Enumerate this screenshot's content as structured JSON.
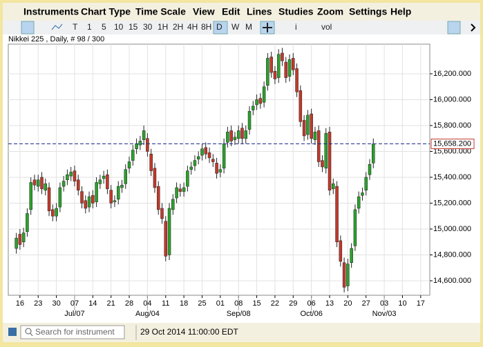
{
  "menu": [
    "Instruments",
    "Chart Type",
    "Time Scale",
    "View",
    "Edit",
    "Lines",
    "Studies",
    "Zoom",
    "Settings",
    "Help"
  ],
  "toolbar": [
    "T",
    "1",
    "5",
    "10",
    "15",
    "30",
    "1H",
    "2H",
    "4H",
    "8H",
    "D",
    "W",
    "M",
    "i",
    "vol"
  ],
  "status": {
    "search_placeholder": "Search for instrument",
    "datetime": "29 Oct 2014 11:00:00 EDT"
  },
  "chart_data": {
    "type": "candlestick",
    "title": "Nikkei 225 , Daily, # 98 / 300",
    "up_color": "#2ca02c",
    "down_color": "#c0392b",
    "grid": true,
    "open": [
      14850,
      14960,
      14900,
      14980,
      15150,
      15380,
      15330,
      15400,
      15300,
      15320,
      15150,
      15100,
      15170,
      15330,
      15380,
      15410,
      15450,
      15380,
      15290,
      15220,
      15170,
      15260,
      15210,
      15350,
      15390,
      15420,
      15300,
      15210,
      15230,
      15320,
      15350,
      15470,
      15530,
      15620,
      15650,
      15690,
      15700,
      15580,
      15470,
      15330,
      15160,
      15060,
      14800,
      15150,
      15240,
      15310,
      15290,
      15330,
      15460,
      15490,
      15540,
      15570,
      15630,
      15590,
      15540,
      15510,
      15440,
      15470,
      15670,
      15760,
      15690,
      15700,
      15780,
      15700,
      15770,
      15920,
      15960,
      16010,
      15980,
      16110,
      16330,
      16220,
      16170,
      16360,
      16290,
      16180,
      16320,
      16240,
      16070,
      15840,
      15730,
      15890,
      15690,
      15760,
      15530,
      15470,
      15750,
      15310,
      15330,
      14910,
      14740,
      14560,
      14740,
      14870,
      15160,
      15260,
      15300,
      15420,
      15510
    ],
    "high": [
      14970,
      15000,
      15010,
      15160,
      15400,
      15420,
      15420,
      15440,
      15390,
      15360,
      15190,
      15200,
      15360,
      15410,
      15460,
      15480,
      15490,
      15420,
      15330,
      15260,
      15290,
      15300,
      15400,
      15420,
      15450,
      15460,
      15340,
      15260,
      15370,
      15380,
      15500,
      15560,
      15650,
      15700,
      15720,
      15800,
      15740,
      15620,
      15510,
      15370,
      15200,
      15100,
      15200,
      15270,
      15360,
      15350,
      15360,
      15490,
      15520,
      15570,
      15600,
      15660,
      15670,
      15630,
      15580,
      15550,
      15500,
      15700,
      15790,
      15800,
      15750,
      15800,
      15820,
      15800,
      15950,
      15990,
      16040,
      16050,
      16140,
      16360,
      16370,
      16260,
      16390,
      16400,
      16330,
      16350,
      16360,
      16280,
      16110,
      15880,
      15920,
      15930,
      15790,
      15800,
      15570,
      15780,
      15790,
      15390,
      15370,
      14950,
      14780,
      14770,
      14890,
      15190,
      15290,
      15320,
      15440,
      15540,
      15700
    ],
    "low": [
      14810,
      14840,
      14860,
      14940,
      15110,
      15300,
      15290,
      15270,
      15260,
      15100,
      15060,
      15060,
      15130,
      15290,
      15340,
      15370,
      15330,
      15260,
      15160,
      15120,
      15130,
      15160,
      15170,
      15310,
      15350,
      15270,
      15160,
      15170,
      15190,
      15280,
      15310,
      15430,
      15490,
      15580,
      15610,
      15650,
      15560,
      15410,
      15280,
      15110,
      15040,
      14750,
      14760,
      15110,
      15200,
      15250,
      15250,
      15290,
      15420,
      15450,
      15500,
      15530,
      15540,
      15510,
      15480,
      15390,
      15400,
      15430,
      15630,
      15640,
      15650,
      15660,
      15660,
      15660,
      15730,
      15880,
      15920,
      15930,
      15940,
      16070,
      16170,
      16120,
      16130,
      16260,
      16130,
      16140,
      16190,
      16020,
      15790,
      15680,
      15690,
      15660,
      15650,
      15480,
      15440,
      15430,
      15260,
      15270,
      14860,
      14710,
      14510,
      14520,
      14700,
      14830,
      15120,
      15220,
      15260,
      15380,
      15470
    ],
    "close": [
      14930,
      14880,
      14970,
      15120,
      15360,
      15340,
      15380,
      15310,
      15350,
      15140,
      15100,
      15160,
      15320,
      15370,
      15420,
      15440,
      15370,
      15300,
      15200,
      15160,
      15250,
      15200,
      15360,
      15380,
      15410,
      15310,
      15200,
      15220,
      15330,
      15340,
      15460,
      15520,
      15610,
      15660,
      15680,
      15760,
      15600,
      15450,
      15320,
      15150,
      15080,
      14790,
      15160,
      15230,
      15320,
      15290,
      15320,
      15450,
      15480,
      15530,
      15560,
      15620,
      15580,
      15550,
      15520,
      15430,
      15460,
      15660,
      15750,
      15680,
      15710,
      15760,
      15700,
      15760,
      15910,
      15950,
      16000,
      15970,
      16100,
      16320,
      16210,
      16160,
      16350,
      16300,
      16170,
      16310,
      16230,
      16060,
      15830,
      15720,
      15880,
      15700,
      15750,
      15520,
      15480,
      15740,
      15300,
      15350,
      14900,
      14750,
      14550,
      14730,
      14850,
      15150,
      15250,
      15280,
      15400,
      15500,
      15658.2
    ],
    "current_price": {
      "value": 15658.2,
      "label": "15,658.200"
    },
    "xlim": [
      -2.2,
      113.5
    ],
    "xticks": [
      {
        "value": 1,
        "label": "16"
      },
      {
        "value": 6,
        "label": "23"
      },
      {
        "value": 11,
        "label": "30"
      },
      {
        "value": 16,
        "label": "07"
      },
      {
        "value": 21,
        "label": "14"
      },
      {
        "value": 26,
        "label": "21"
      },
      {
        "value": 31,
        "label": "28"
      },
      {
        "value": 36,
        "label": "04"
      },
      {
        "value": 41,
        "label": "11"
      },
      {
        "value": 46,
        "label": "18"
      },
      {
        "value": 51,
        "label": "25"
      },
      {
        "value": 56,
        "label": "01"
      },
      {
        "value": 61,
        "label": "08"
      },
      {
        "value": 66,
        "label": "15"
      },
      {
        "value": 71,
        "label": "22"
      },
      {
        "value": 76,
        "label": "29"
      },
      {
        "value": 81,
        "label": "06"
      },
      {
        "value": 86,
        "label": "13"
      },
      {
        "value": 91,
        "label": "20"
      },
      {
        "value": 96,
        "label": "27"
      },
      {
        "value": 101,
        "label": "03"
      },
      {
        "value": 106,
        "label": "10"
      },
      {
        "value": 111,
        "label": "17"
      }
    ],
    "month_ticks": [
      {
        "value": 16,
        "label": "Jul/07"
      },
      {
        "value": 36,
        "label": "Aug/04"
      },
      {
        "value": 61,
        "label": "Sep/08"
      },
      {
        "value": 81,
        "label": "Oct/06"
      },
      {
        "value": 101,
        "label": "Nov/03"
      }
    ],
    "ylim": [
      14488,
      16429
    ],
    "yticks": [
      {
        "value": 14600,
        "label": "14,600.000"
      },
      {
        "value": 14800,
        "label": "14,800.000"
      },
      {
        "value": 15000,
        "label": "15,000.000"
      },
      {
        "value": 15200,
        "label": "15,200.000"
      },
      {
        "value": 15400,
        "label": "15,400.000"
      },
      {
        "value": 15600,
        "label": "15,600.000"
      },
      {
        "value": 15800,
        "label": "15,800.000"
      },
      {
        "value": 16000,
        "label": "16,000.000"
      },
      {
        "value": 16200,
        "label": "16,200.000"
      }
    ]
  }
}
